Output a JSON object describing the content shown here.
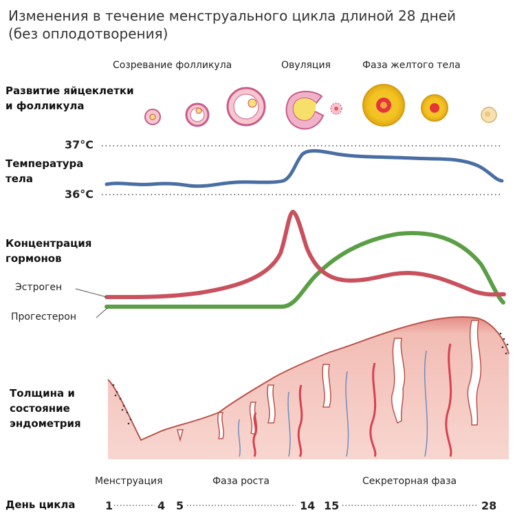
{
  "title_line1": "Изменения в течение менструального цикла длиной 28 дней",
  "title_line2": "(без оплодотворения)",
  "follicle_phases": {
    "maturation": "Созревание фолликула",
    "ovulation": "Овуляция",
    "luteal": "Фаза желтого тела"
  },
  "rows": {
    "oocyte_l1": "Развитие яйцеклетки",
    "oocyte_l2": "и фолликула",
    "temp_l1": "Температура",
    "temp_l2": "тела",
    "hormones_l1": "Концентрация",
    "hormones_l2": "гормонов",
    "endometrium_l1": "Толщина и",
    "endometrium_l2": "состояние",
    "endometrium_l3": "эндометрия"
  },
  "temperature": {
    "high": "37°C",
    "low": "36°C"
  },
  "hormones": {
    "estrogen": "Эстроген",
    "progesterone": "Прогестерон"
  },
  "colors": {
    "temperature": "#4a6ea3",
    "estrogen": "#c9515e",
    "progesterone": "#5a9e45",
    "endometrium": "#f3c4bd"
  },
  "endometrium_phases": {
    "menstruation": "Менструация",
    "growth": "Фаза роста",
    "secretory": "Секреторная фаза"
  },
  "cycle_days": {
    "label": "День цикла",
    "d1": "1",
    "d4": "4",
    "d5": "5",
    "d14": "14",
    "d15": "15",
    "d28": "28"
  }
}
